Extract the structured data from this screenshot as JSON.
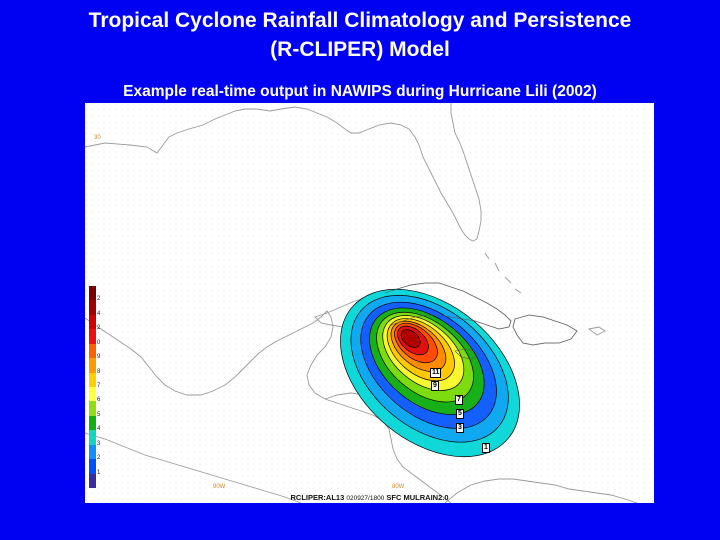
{
  "slide": {
    "title_line1": "Tropical Cyclone Rainfall Climatology and Persistence",
    "title_line2": "(R-CLIPER) Model",
    "subtitle": "Example real-time output in NAWIPS during Hurricane Lili (2002)"
  },
  "colors": {
    "background": "#0000f2",
    "map_background": "#ffffff",
    "coastline": "#9a9a9a"
  },
  "map": {
    "lat_labels": [
      "30"
    ],
    "lon_labels": [
      "90W",
      "80W"
    ],
    "colorbar_labels": [
      "2",
      "4",
      "2",
      "0",
      "9",
      "8",
      "7",
      "6",
      "5",
      "4",
      "3",
      "2",
      "1"
    ],
    "colorbar_colors": [
      "#7a0000",
      "#a00000",
      "#d00000",
      "#f01010",
      "#ff6000",
      "#ff9a00",
      "#ffd000",
      "#ffff40",
      "#90e010",
      "#10b010",
      "#10d8c0",
      "#1090ff",
      "#0050ff",
      "#3c2ca0"
    ],
    "contour_labels": [
      "11",
      "9",
      "7",
      "5",
      "3",
      "1"
    ],
    "footer_model": "RCLIPER:AL13",
    "footer_time": "020927/1800",
    "footer_level": "SFC",
    "footer_field": "MULRAIN2.0"
  }
}
